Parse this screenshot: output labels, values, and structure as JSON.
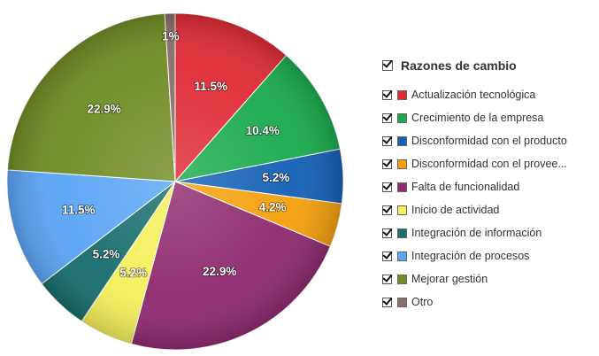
{
  "chart_data": {
    "type": "pie",
    "title": "",
    "legend_title": "Razones de cambio",
    "legend_placement": "right",
    "series": [
      {
        "name": "Actualización tecnológica",
        "value": 11.5,
        "label": "11.5%",
        "color": "#e02b35"
      },
      {
        "name": "Crecimiento de la empresa",
        "value": 10.4,
        "label": "10.4%",
        "color": "#1bab4e"
      },
      {
        "name": "Disconformidad con el producto",
        "value": 5.2,
        "label": "5.2%",
        "color": "#1460b5"
      },
      {
        "name": "Disconformidad con el provee...",
        "value": 4.2,
        "label": "4.2%",
        "color": "#f5a00c"
      },
      {
        "name": "Falta de funcionalidad",
        "value": 22.9,
        "label": "22.9%",
        "color": "#8e2a6e"
      },
      {
        "name": "Inicio de actividad",
        "value": 5.2,
        "label": "5.2%",
        "color": "#f4f05a"
      },
      {
        "name": "Integración de información",
        "value": 5.2,
        "label": "5.2%",
        "color": "#176e6d"
      },
      {
        "name": "Integración de procesos",
        "value": 11.5,
        "label": "11.5%",
        "color": "#5aa5f5"
      },
      {
        "name": "Mejorar gestión",
        "value": 22.9,
        "label": "22.9%",
        "color": "#6f8c24"
      },
      {
        "name": "Otro",
        "value": 1,
        "label": "1%",
        "color": "#8a6e6a"
      }
    ]
  }
}
